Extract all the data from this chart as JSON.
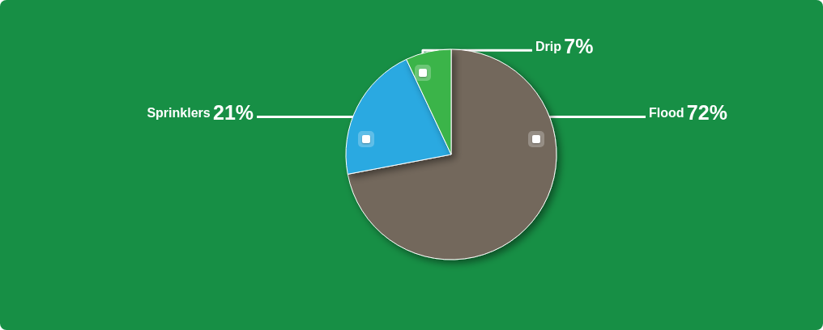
{
  "chart_data": {
    "type": "pie",
    "categories": [
      "Flood",
      "Sprinklers",
      "Drip"
    ],
    "values": [
      72,
      21,
      7
    ],
    "value_labels": [
      "72%",
      "21%",
      "7%"
    ],
    "colors": [
      "#73685b",
      "#29a9e1",
      "#3bb44a"
    ]
  }
}
